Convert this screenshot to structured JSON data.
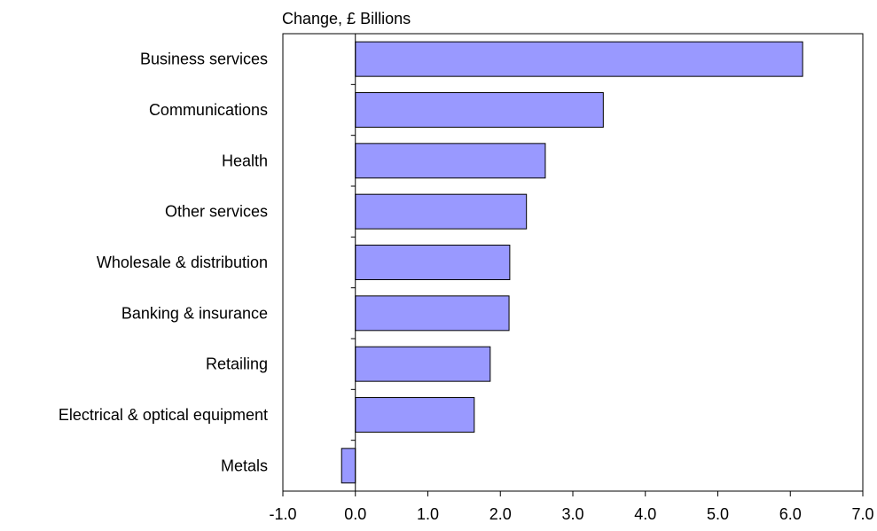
{
  "chart_data": {
    "type": "bar",
    "orientation": "horizontal",
    "title": "",
    "xlabel": "Change, £ Billions",
    "ylabel": "",
    "categories": [
      "Business services",
      "Communications",
      "Health",
      "Other services",
      "Wholesale & distribution",
      "Banking & insurance",
      "Retailing",
      "Electrical & optical equipment",
      "Metals"
    ],
    "values": [
      6.17,
      3.42,
      2.62,
      2.36,
      2.13,
      2.12,
      1.86,
      1.64,
      -0.19
    ],
    "xlim": [
      -1.0,
      7.0
    ],
    "x_ticks": [
      "-1.0",
      "0.0",
      "1.0",
      "2.0",
      "3.0",
      "4.0",
      "5.0",
      "6.0",
      "7.0"
    ],
    "grid": false,
    "bar_color": "#9999ff",
    "bar_edge_color": "#000000"
  }
}
